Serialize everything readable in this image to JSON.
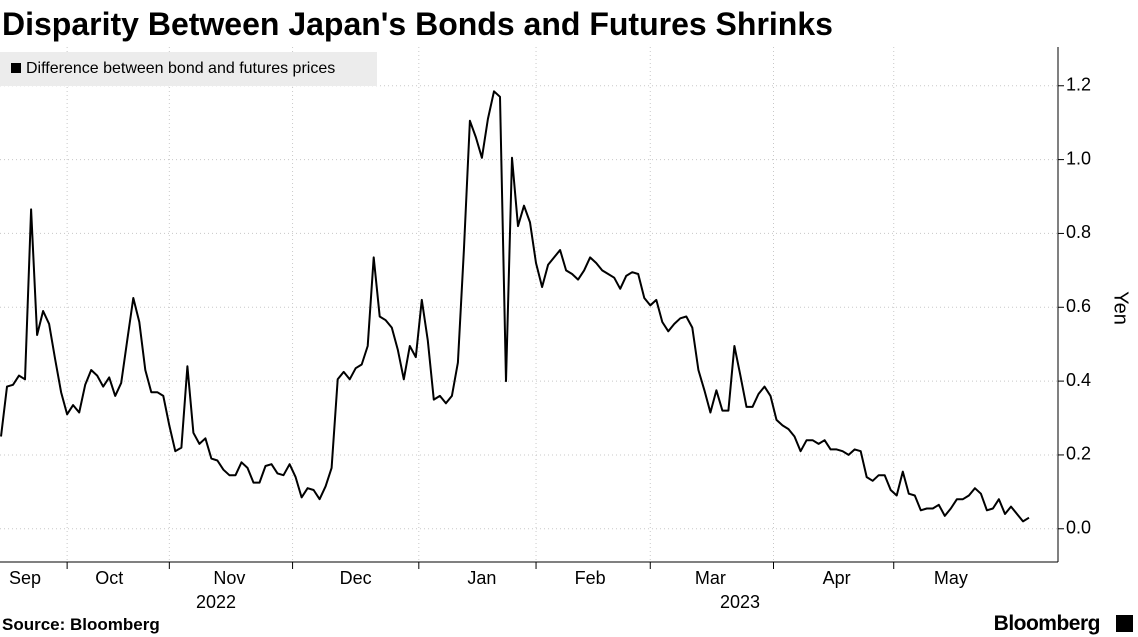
{
  "chart_data": {
    "type": "line",
    "title": "Disparity Between Japan's Bonds and Futures Shrinks",
    "y_axis_label": "Yen",
    "source": "Source: Bloomberg",
    "brand": "Bloomberg",
    "x_year_labels": [
      "2022",
      "2023"
    ],
    "categories": [
      null,
      null,
      null,
      null,
      "Sep",
      null,
      null,
      null,
      null,
      null,
      null,
      null,
      null,
      null,
      null,
      null,
      null,
      null,
      "Oct",
      null,
      null,
      null,
      null,
      null,
      null,
      null,
      null,
      null,
      null,
      null,
      null,
      null,
      null,
      null,
      null,
      null,
      null,
      null,
      "Nov",
      null,
      null,
      null,
      null,
      null,
      null,
      null,
      null,
      null,
      null,
      null,
      null,
      null,
      null,
      null,
      null,
      null,
      null,
      null,
      null,
      "Dec",
      null,
      null,
      null,
      null,
      null,
      null,
      null,
      null,
      null,
      null,
      null,
      null,
      null,
      null,
      null,
      null,
      null,
      null,
      null,
      null,
      "Jan",
      null,
      null,
      null,
      null,
      null,
      null,
      null,
      null,
      null,
      null,
      null,
      null,
      null,
      null,
      null,
      null,
      null,
      "Feb",
      null,
      null,
      null,
      null,
      null,
      null,
      null,
      null,
      null,
      null,
      null,
      null,
      null,
      null,
      null,
      null,
      null,
      null,
      null,
      "Mar",
      null,
      null,
      null,
      null,
      null,
      null,
      null,
      null,
      null,
      null,
      null,
      null,
      null,
      null,
      null,
      null,
      null,
      null,
      null,
      null,
      "Apr",
      null,
      null,
      null,
      null,
      null,
      null,
      null,
      null,
      null,
      null,
      null,
      null,
      null,
      null,
      null,
      null,
      null,
      null,
      "May",
      null,
      null,
      null,
      null,
      null,
      null,
      null,
      null,
      null,
      null,
      null,
      null,
      null
    ],
    "series": [
      {
        "name": "Difference between bond and futures prices",
        "color": "#000000",
        "values": [
          0.25,
          0.385,
          0.39,
          0.415,
          0.405,
          0.865,
          0.525,
          0.59,
          0.555,
          0.46,
          0.37,
          0.31,
          0.335,
          0.315,
          0.39,
          0.43,
          0.415,
          0.385,
          0.41,
          0.36,
          0.395,
          0.51,
          0.625,
          0.56,
          0.43,
          0.37,
          0.37,
          0.36,
          0.28,
          0.21,
          0.22,
          0.44,
          0.26,
          0.23,
          0.245,
          0.19,
          0.185,
          0.16,
          0.145,
          0.145,
          0.18,
          0.165,
          0.125,
          0.125,
          0.17,
          0.175,
          0.15,
          0.145,
          0.175,
          0.14,
          0.085,
          0.11,
          0.105,
          0.08,
          0.115,
          0.165,
          0.405,
          0.425,
          0.405,
          0.435,
          0.445,
          0.495,
          0.735,
          0.575,
          0.565,
          0.545,
          0.485,
          0.405,
          0.495,
          0.465,
          0.62,
          0.51,
          0.35,
          0.36,
          0.34,
          0.36,
          0.45,
          0.755,
          1.105,
          1.06,
          1.005,
          1.11,
          1.185,
          1.17,
          0.4,
          1.005,
          0.82,
          0.875,
          0.83,
          0.72,
          0.655,
          0.715,
          0.735,
          0.755,
          0.7,
          0.69,
          0.675,
          0.7,
          0.735,
          0.72,
          0.7,
          0.69,
          0.68,
          0.65,
          0.685,
          0.695,
          0.69,
          0.625,
          0.605,
          0.62,
          0.56,
          0.535,
          0.555,
          0.57,
          0.575,
          0.545,
          0.43,
          0.375,
          0.315,
          0.375,
          0.32,
          0.32,
          0.495,
          0.415,
          0.33,
          0.33,
          0.365,
          0.385,
          0.36,
          0.295,
          0.28,
          0.27,
          0.25,
          0.21,
          0.24,
          0.24,
          0.23,
          0.24,
          0.215,
          0.215,
          0.21,
          0.2,
          0.215,
          0.21,
          0.14,
          0.13,
          0.145,
          0.145,
          0.105,
          0.09,
          0.155,
          0.095,
          0.09,
          0.05,
          0.055,
          0.055,
          0.065,
          0.035,
          0.055,
          0.08,
          0.08,
          0.09,
          0.11,
          0.095,
          0.05,
          0.055,
          0.08,
          0.04,
          0.06,
          0.04,
          0.02,
          0.03
        ]
      }
    ],
    "ylim": [
      -0.09,
      1.305
    ],
    "yticks": [
      {
        "value": 0,
        "label": "0.0"
      },
      0.2,
      0.4,
      0.6,
      0.8,
      {
        "value": 1,
        "label": "1.0"
      },
      1.2
    ],
    "grid": true,
    "legend": "top-left"
  }
}
